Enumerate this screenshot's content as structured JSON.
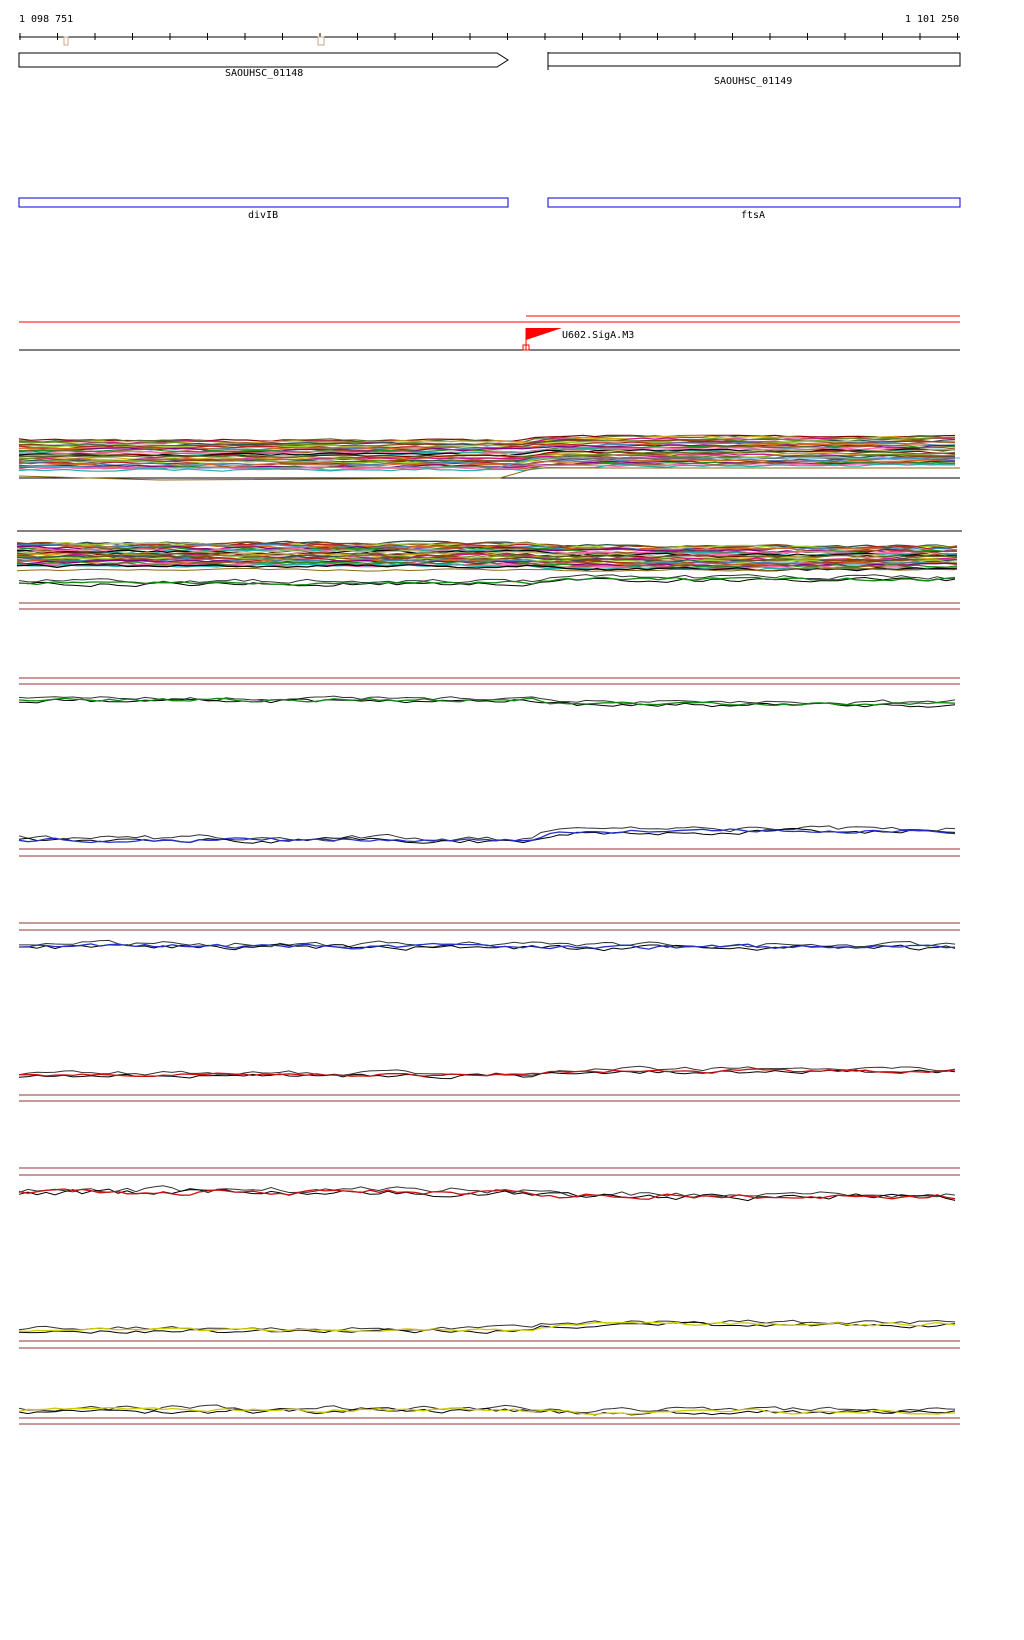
{
  "ruler": {
    "start_label": "1 098 751",
    "end_label": "1 101 250"
  },
  "locus_genes": [
    {
      "label": "SAOUHSC_01148",
      "strand": "+"
    },
    {
      "label": "SAOUHSC_01149",
      "strand": "+"
    }
  ],
  "named_genes": [
    {
      "label": "divIB"
    },
    {
      "label": "ftsA"
    }
  ],
  "promoter": {
    "label": "U602.SigA.M3",
    "color": "#ff0000"
  },
  "colors": {
    "gene_outline": "#000000",
    "named_gene_outline": "#0000cc",
    "promoter_line": "#ff0000",
    "baseline": "#993333",
    "green": "#118811",
    "blue": "#2233cc",
    "red": "#cc1111",
    "yellow": "#cccc00",
    "black": "#000000"
  },
  "expression_tracks": [
    {
      "name": "green-track-1",
      "color": "green"
    },
    {
      "name": "green-track-2",
      "color": "green"
    },
    {
      "name": "blue-track-1",
      "color": "blue"
    },
    {
      "name": "blue-track-2",
      "color": "blue"
    },
    {
      "name": "red-track-1",
      "color": "red"
    },
    {
      "name": "red-track-2",
      "color": "red"
    },
    {
      "name": "yellow-track-1",
      "color": "yellow"
    },
    {
      "name": "yellow-track-2",
      "color": "yellow"
    }
  ]
}
